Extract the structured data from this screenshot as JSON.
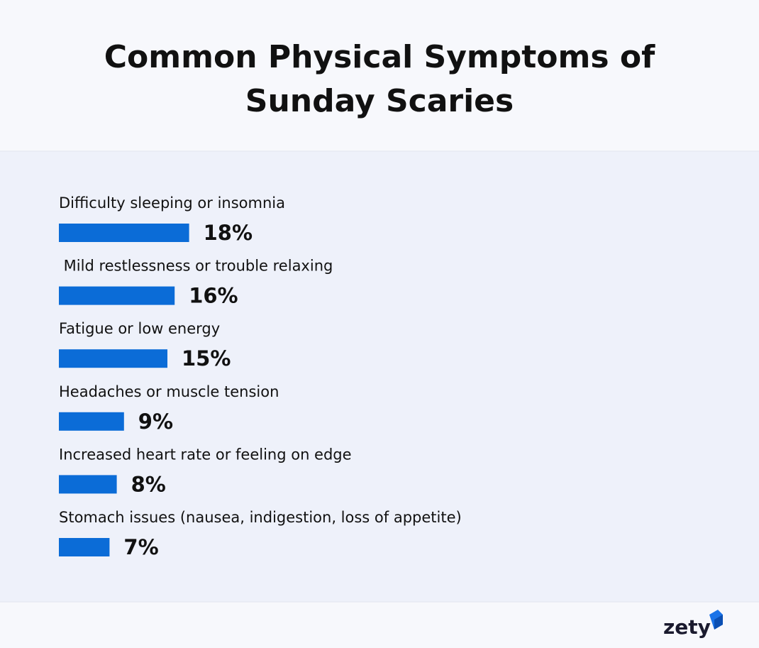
{
  "chart_data": {
    "type": "bar",
    "orientation": "horizontal",
    "title": "Common Physical Symptoms of Sunday Scaries",
    "categories": [
      "Difficulty sleeping or insomnia",
      " Mild restlessness or trouble relaxing",
      "Fatigue or low energy",
      "Headaches or muscle tension",
      "Increased heart rate or feeling on edge",
      "Stomach issues (nausea, indigestion, loss of appetite)"
    ],
    "values": [
      18,
      16,
      15,
      9,
      8,
      7
    ],
    "value_labels": [
      "18%",
      "16%",
      "15%",
      "9%",
      "8%",
      "7%"
    ],
    "color": "#0b6cd7"
  },
  "logo": "zety"
}
